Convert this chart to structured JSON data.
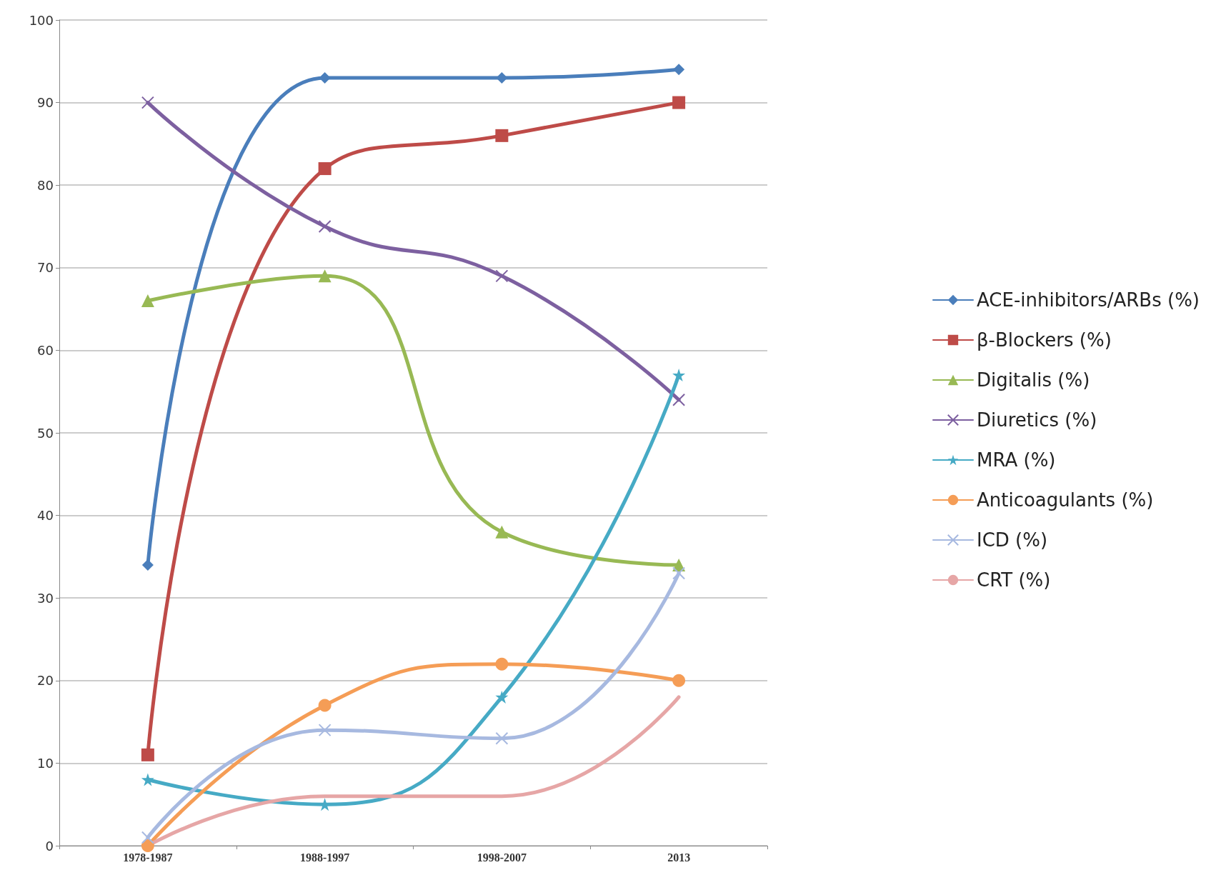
{
  "chart_data": {
    "type": "line",
    "categories": [
      "1978-1987",
      "1988-1997",
      "1998-2007",
      "2013"
    ],
    "ylim": [
      0,
      100
    ],
    "yticks": [
      0,
      10,
      20,
      30,
      40,
      50,
      60,
      70,
      80,
      90,
      100
    ],
    "grid": "y",
    "legend": "right",
    "line_style": "solid",
    "series": [
      {
        "name": "ACE-inhibitors/ARBs (%)",
        "color": "#4a7ebb",
        "marker": "diamond",
        "values": [
          34,
          93,
          93,
          94
        ]
      },
      {
        "name": "β-Blockers (%)",
        "color": "#be4b48",
        "marker": "square",
        "values": [
          11,
          82,
          86,
          90
        ]
      },
      {
        "name": "Digitalis (%)",
        "color": "#98b954",
        "marker": "triangle",
        "values": [
          66,
          69,
          38,
          34
        ]
      },
      {
        "name": "Diuretics (%)",
        "color": "#7d60a0",
        "marker": "cross",
        "values": [
          90,
          75,
          69,
          54
        ]
      },
      {
        "name": "MRA (%)",
        "color": "#46aac5",
        "marker": "star",
        "values": [
          8,
          5,
          18,
          57
        ]
      },
      {
        "name": "Anticoagulants (%)",
        "color": "#f59d56",
        "marker": "circle",
        "values": [
          0,
          17,
          22,
          20
        ]
      },
      {
        "name": "ICD (%)",
        "color": "#a7b9e0",
        "marker": "cross",
        "values": [
          1,
          14,
          13,
          33
        ]
      },
      {
        "name": "CRT (%)",
        "color": "#e6a6a6",
        "marker": "none",
        "values": [
          0,
          6,
          6,
          18
        ]
      }
    ]
  }
}
